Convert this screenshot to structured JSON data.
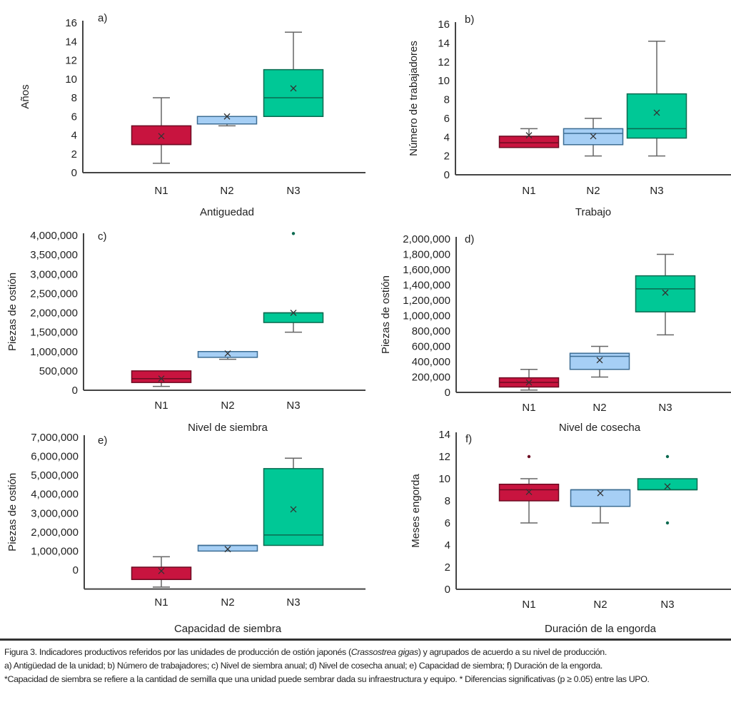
{
  "colors": {
    "N1": "#c8143f",
    "N2": "#a6cff5",
    "N3": "#00c896",
    "N1_stroke": "#6d0a22",
    "N2_stroke": "#3c6d94",
    "N3_stroke": "#0b6a50",
    "whisker": "#666666",
    "axis": "#444444"
  },
  "chart_data": [
    {
      "type": "box",
      "tag": "a)",
      "ylabel": "Años",
      "xlabel": "Antiguedad",
      "categories": [
        "N1",
        "N2",
        "N3"
      ],
      "yticks": [
        "0",
        "2",
        "4",
        "6",
        "8",
        "10",
        "12",
        "14",
        "16"
      ],
      "ytick_values": [
        0,
        2,
        4,
        6,
        8,
        10,
        12,
        14,
        16
      ],
      "ylim": [
        0,
        16
      ],
      "boxes": [
        {
          "min": 1,
          "q1": 3,
          "median": 3,
          "q3": 5,
          "max": 8,
          "mean": 3.9,
          "outliers": []
        },
        {
          "min": 5,
          "q1": 5.2,
          "median": 5.2,
          "q3": 6,
          "max": 6,
          "mean": 6,
          "outliers": []
        },
        {
          "min": 6,
          "q1": 6,
          "median": 8,
          "q3": 11,
          "max": 15,
          "mean": 9,
          "outliers": []
        }
      ]
    },
    {
      "type": "box",
      "tag": "b)",
      "ylabel": "Número de trabajadores",
      "xlabel": "Trabajo",
      "categories": [
        "N1",
        "N2",
        "N3"
      ],
      "yticks": [
        "0",
        "2",
        "4",
        "6",
        "8",
        "10",
        "12",
        "14",
        "16"
      ],
      "ytick_values": [
        0,
        2,
        4,
        6,
        8,
        10,
        12,
        14,
        16
      ],
      "ylim": [
        0,
        16
      ],
      "boxes": [
        {
          "min": 2.9,
          "q1": 2.9,
          "median": 3.4,
          "q3": 4.1,
          "max": 4.9,
          "mean": 4.2,
          "outliers": []
        },
        {
          "min": 2,
          "q1": 3.2,
          "median": 4.4,
          "q3": 4.9,
          "max": 6,
          "mean": 4.1,
          "outliers": []
        },
        {
          "min": 2,
          "q1": 3.9,
          "median": 4.9,
          "q3": 8.6,
          "max": 14.2,
          "mean": 6.6,
          "outliers": []
        }
      ]
    },
    {
      "type": "box",
      "tag": "c)",
      "ylabel": "Piezas de ostión",
      "xlabel": "Nivel de siembra",
      "categories": [
        "N1",
        "N2",
        "N3"
      ],
      "yticks": [
        "0",
        "500,000",
        "1,000,000",
        "1,500,000",
        "2,000,000",
        "2,500,000",
        "3,000,000",
        "3,500,000",
        "4,000,000"
      ],
      "ytick_values": [
        0,
        500000,
        1000000,
        1500000,
        2000000,
        2500000,
        3000000,
        3500000,
        4000000
      ],
      "ylim": [
        0,
        4000000
      ],
      "boxes": [
        {
          "min": 100000,
          "q1": 200000,
          "median": 300000,
          "q3": 500000,
          "max": 500000,
          "mean": 300000,
          "outliers": []
        },
        {
          "min": 800000,
          "q1": 850000,
          "median": 1000000,
          "q3": 1000000,
          "max": 1000000,
          "mean": 950000,
          "outliers": []
        },
        {
          "min": 1500000,
          "q1": 1750000,
          "median": 2000000,
          "q3": 2000000,
          "max": 2000000,
          "mean": 2000000,
          "outliers": [
            4050000
          ]
        }
      ]
    },
    {
      "type": "box",
      "tag": "d)",
      "ylabel": "Piezas de ostión",
      "xlabel": "Nivel de cosecha",
      "categories": [
        "N1",
        "N2",
        "N3"
      ],
      "yticks": [
        "0",
        "200,000",
        "400,000",
        "600,000",
        "800,000",
        "1,000,000",
        "1,200,000",
        "1,400,000",
        "1,600,000",
        "1,800,000",
        "2,000,000"
      ],
      "ytick_values": [
        0,
        200000,
        400000,
        600000,
        800000,
        1000000,
        1200000,
        1400000,
        1600000,
        1800000,
        2000000
      ],
      "ylim": [
        0,
        2000000
      ],
      "boxes": [
        {
          "min": 30000,
          "q1": 70000,
          "median": 130000,
          "q3": 190000,
          "max": 300000,
          "mean": 130000,
          "outliers": []
        },
        {
          "min": 200000,
          "q1": 300000,
          "median": 470000,
          "q3": 510000,
          "max": 600000,
          "mean": 420000,
          "outliers": []
        },
        {
          "min": 750000,
          "q1": 1050000,
          "median": 1350000,
          "q3": 1520000,
          "max": 1800000,
          "mean": 1300000,
          "outliers": []
        }
      ]
    },
    {
      "type": "box",
      "tag": "e)",
      "ylabel": "Piezas de ostión",
      "xlabel": "Capacidad de siembra",
      "categories": [
        "N1",
        "N2",
        "N3"
      ],
      "yticks": [
        "0",
        "1,000,000",
        "2,000,000",
        "3,000,000",
        "4,000,000",
        "5,000,000",
        "6,000,000",
        "7,000,000"
      ],
      "ytick_values": [
        0,
        1000000,
        2000000,
        3000000,
        4000000,
        5000000,
        6000000,
        7000000
      ],
      "ylim": [
        -1000000,
        7000000
      ],
      "boxes": [
        {
          "min": -900000,
          "q1": -500000,
          "median": -500000,
          "q3": 150000,
          "max": 700000,
          "mean": -50000,
          "outliers": []
        },
        {
          "min": 1000000,
          "q1": 1000000,
          "median": 1300000,
          "q3": 1300000,
          "max": 1300000,
          "mean": 1100000,
          "outliers": []
        },
        {
          "min": 1300000,
          "q1": 1300000,
          "median": 1850000,
          "q3": 5350000,
          "max": 5900000,
          "mean": 3200000,
          "outliers": []
        }
      ]
    },
    {
      "type": "box",
      "tag": "f)",
      "ylabel": "Meses engorda",
      "xlabel": "Duración de la engorda",
      "categories": [
        "N1",
        "N2",
        "N3"
      ],
      "yticks": [
        "0",
        "2",
        "4",
        "6",
        "8",
        "10",
        "12",
        "14"
      ],
      "ytick_values": [
        0,
        2,
        4,
        6,
        8,
        10,
        12,
        14
      ],
      "ylim": [
        0,
        14
      ],
      "boxes": [
        {
          "min": 6,
          "q1": 8,
          "median": 9,
          "q3": 9.5,
          "max": 10,
          "mean": 8.8,
          "outliers": [
            12
          ]
        },
        {
          "min": 6,
          "q1": 7.5,
          "median": 9,
          "q3": 9,
          "max": 9,
          "mean": 8.7,
          "outliers": []
        },
        {
          "min": 9,
          "q1": 9,
          "median": 9,
          "q3": 10,
          "max": 10,
          "mean": 9.3,
          "outliers": [
            12,
            6
          ]
        }
      ]
    }
  ],
  "caption": {
    "figure_label": "Figura 3.",
    "line1_a": " Indicadores productivos referidos por las unidades de producción de ostión japonés (",
    "species": "Crassostrea gigas",
    "line1_b": ") y agrupados de acuerdo a su nivel de producción.",
    "line2": "a) Antigüedad de la unidad; b) Número de trabajadores; c) Nivel de siembra anual; d) Nivel de cosecha anual; e) Capacidad de siembra; f) Duración de la engorda.",
    "line3": "*Capacidad de siembra se refiere a la cantidad de semilla que una unidad puede sembrar dada su infraestructura y equipo. * Diferencias significativas (p ≥ 0.05) entre las UPO."
  }
}
